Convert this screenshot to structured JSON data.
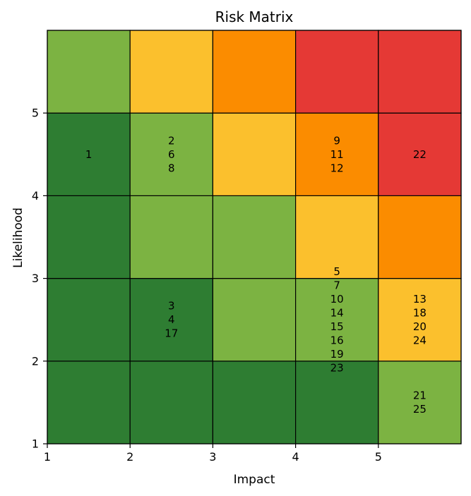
{
  "chart_data": {
    "type": "heatmap",
    "title": "Risk Matrix",
    "xlabel": "Impact",
    "ylabel": "Likelihood",
    "xlim": [
      1,
      6
    ],
    "ylim": [
      1,
      6
    ],
    "x_ticks": [
      1,
      2,
      3,
      4,
      5
    ],
    "y_ticks": [
      1,
      2,
      3,
      4,
      5
    ],
    "grid": false,
    "colors": {
      "dark_green": "#2e7d32",
      "light_green": "#7cb342",
      "yellow": "#fbc02d",
      "orange": "#fb8c00",
      "red": "#e53935"
    },
    "cells": [
      {
        "impact": 1,
        "likelihood": 1,
        "color": "dark_green",
        "risks": []
      },
      {
        "impact": 2,
        "likelihood": 1,
        "color": "dark_green",
        "risks": []
      },
      {
        "impact": 3,
        "likelihood": 1,
        "color": "dark_green",
        "risks": []
      },
      {
        "impact": 4,
        "likelihood": 1,
        "color": "dark_green",
        "risks": []
      },
      {
        "impact": 5,
        "likelihood": 1,
        "color": "light_green",
        "risks": [
          "21",
          "25"
        ]
      },
      {
        "impact": 1,
        "likelihood": 2,
        "color": "dark_green",
        "risks": []
      },
      {
        "impact": 2,
        "likelihood": 2,
        "color": "dark_green",
        "risks": [
          "3",
          "4",
          "17"
        ]
      },
      {
        "impact": 3,
        "likelihood": 2,
        "color": "light_green",
        "risks": []
      },
      {
        "impact": 4,
        "likelihood": 2,
        "color": "light_green",
        "risks": [
          "5",
          "7",
          "10",
          "14",
          "15",
          "16",
          "19",
          "23"
        ]
      },
      {
        "impact": 5,
        "likelihood": 2,
        "color": "yellow",
        "risks": [
          "13",
          "18",
          "20",
          "24"
        ]
      },
      {
        "impact": 1,
        "likelihood": 3,
        "color": "dark_green",
        "risks": []
      },
      {
        "impact": 2,
        "likelihood": 3,
        "color": "light_green",
        "risks": []
      },
      {
        "impact": 3,
        "likelihood": 3,
        "color": "light_green",
        "risks": []
      },
      {
        "impact": 4,
        "likelihood": 3,
        "color": "yellow",
        "risks": []
      },
      {
        "impact": 5,
        "likelihood": 3,
        "color": "orange",
        "risks": []
      },
      {
        "impact": 1,
        "likelihood": 4,
        "color": "dark_green",
        "risks": [
          "1"
        ]
      },
      {
        "impact": 2,
        "likelihood": 4,
        "color": "light_green",
        "risks": [
          "2",
          "6",
          "8"
        ]
      },
      {
        "impact": 3,
        "likelihood": 4,
        "color": "yellow",
        "risks": []
      },
      {
        "impact": 4,
        "likelihood": 4,
        "color": "orange",
        "risks": [
          "9",
          "11",
          "12"
        ]
      },
      {
        "impact": 5,
        "likelihood": 4,
        "color": "red",
        "risks": [
          "22"
        ]
      },
      {
        "impact": 1,
        "likelihood": 5,
        "color": "light_green",
        "risks": []
      },
      {
        "impact": 2,
        "likelihood": 5,
        "color": "yellow",
        "risks": []
      },
      {
        "impact": 3,
        "likelihood": 5,
        "color": "orange",
        "risks": []
      },
      {
        "impact": 4,
        "likelihood": 5,
        "color": "red",
        "risks": []
      },
      {
        "impact": 5,
        "likelihood": 5,
        "color": "red",
        "risks": []
      }
    ]
  }
}
